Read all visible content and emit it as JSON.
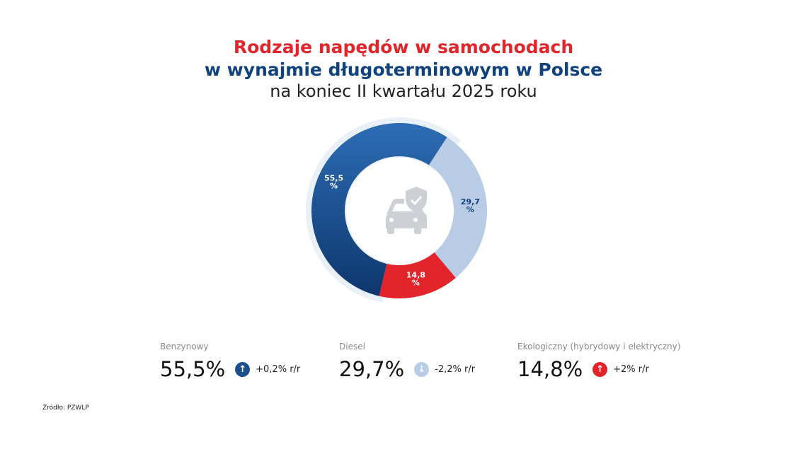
{
  "title": {
    "line1": "Rodzaje napędów w samochodach",
    "line2": "w wynajmie długoterminowym w Polsce",
    "line3": "na koniec II kwartału 2025 roku"
  },
  "chart_data": {
    "type": "pie",
    "variant": "donut",
    "categories": [
      "Benzynowy",
      "Diesel",
      "Ekologiczny (hybrydowy i elektryczny)"
    ],
    "values": [
      55.5,
      29.7,
      14.8
    ],
    "data_labels": [
      "55,5 %",
      "29,7 %",
      "14,8 %"
    ],
    "colors": [
      "#1d4f8c",
      "#b9cce5",
      "#e3242b"
    ],
    "label_colors": [
      "#ffffff",
      "#12427e",
      "#ffffff"
    ],
    "center_icon": "car-shield-check-icon"
  },
  "stats": [
    {
      "label": "Benzynowy",
      "value": "55,5%",
      "change": "+0,2% r/r",
      "direction": "up",
      "arrow": "↑",
      "color": "#1d4f8c"
    },
    {
      "label": "Diesel",
      "value": "29,7%",
      "change": "-2,2% r/r",
      "direction": "down",
      "arrow": "↓",
      "color": "#b9cce5"
    },
    {
      "label": "Ekologiczny (hybrydowy i elektryczny)",
      "value": "14,8%",
      "change": "+2% r/r",
      "direction": "up",
      "arrow": "↑",
      "color": "#e3242b"
    }
  ],
  "source": "Źródło: PZWLP"
}
